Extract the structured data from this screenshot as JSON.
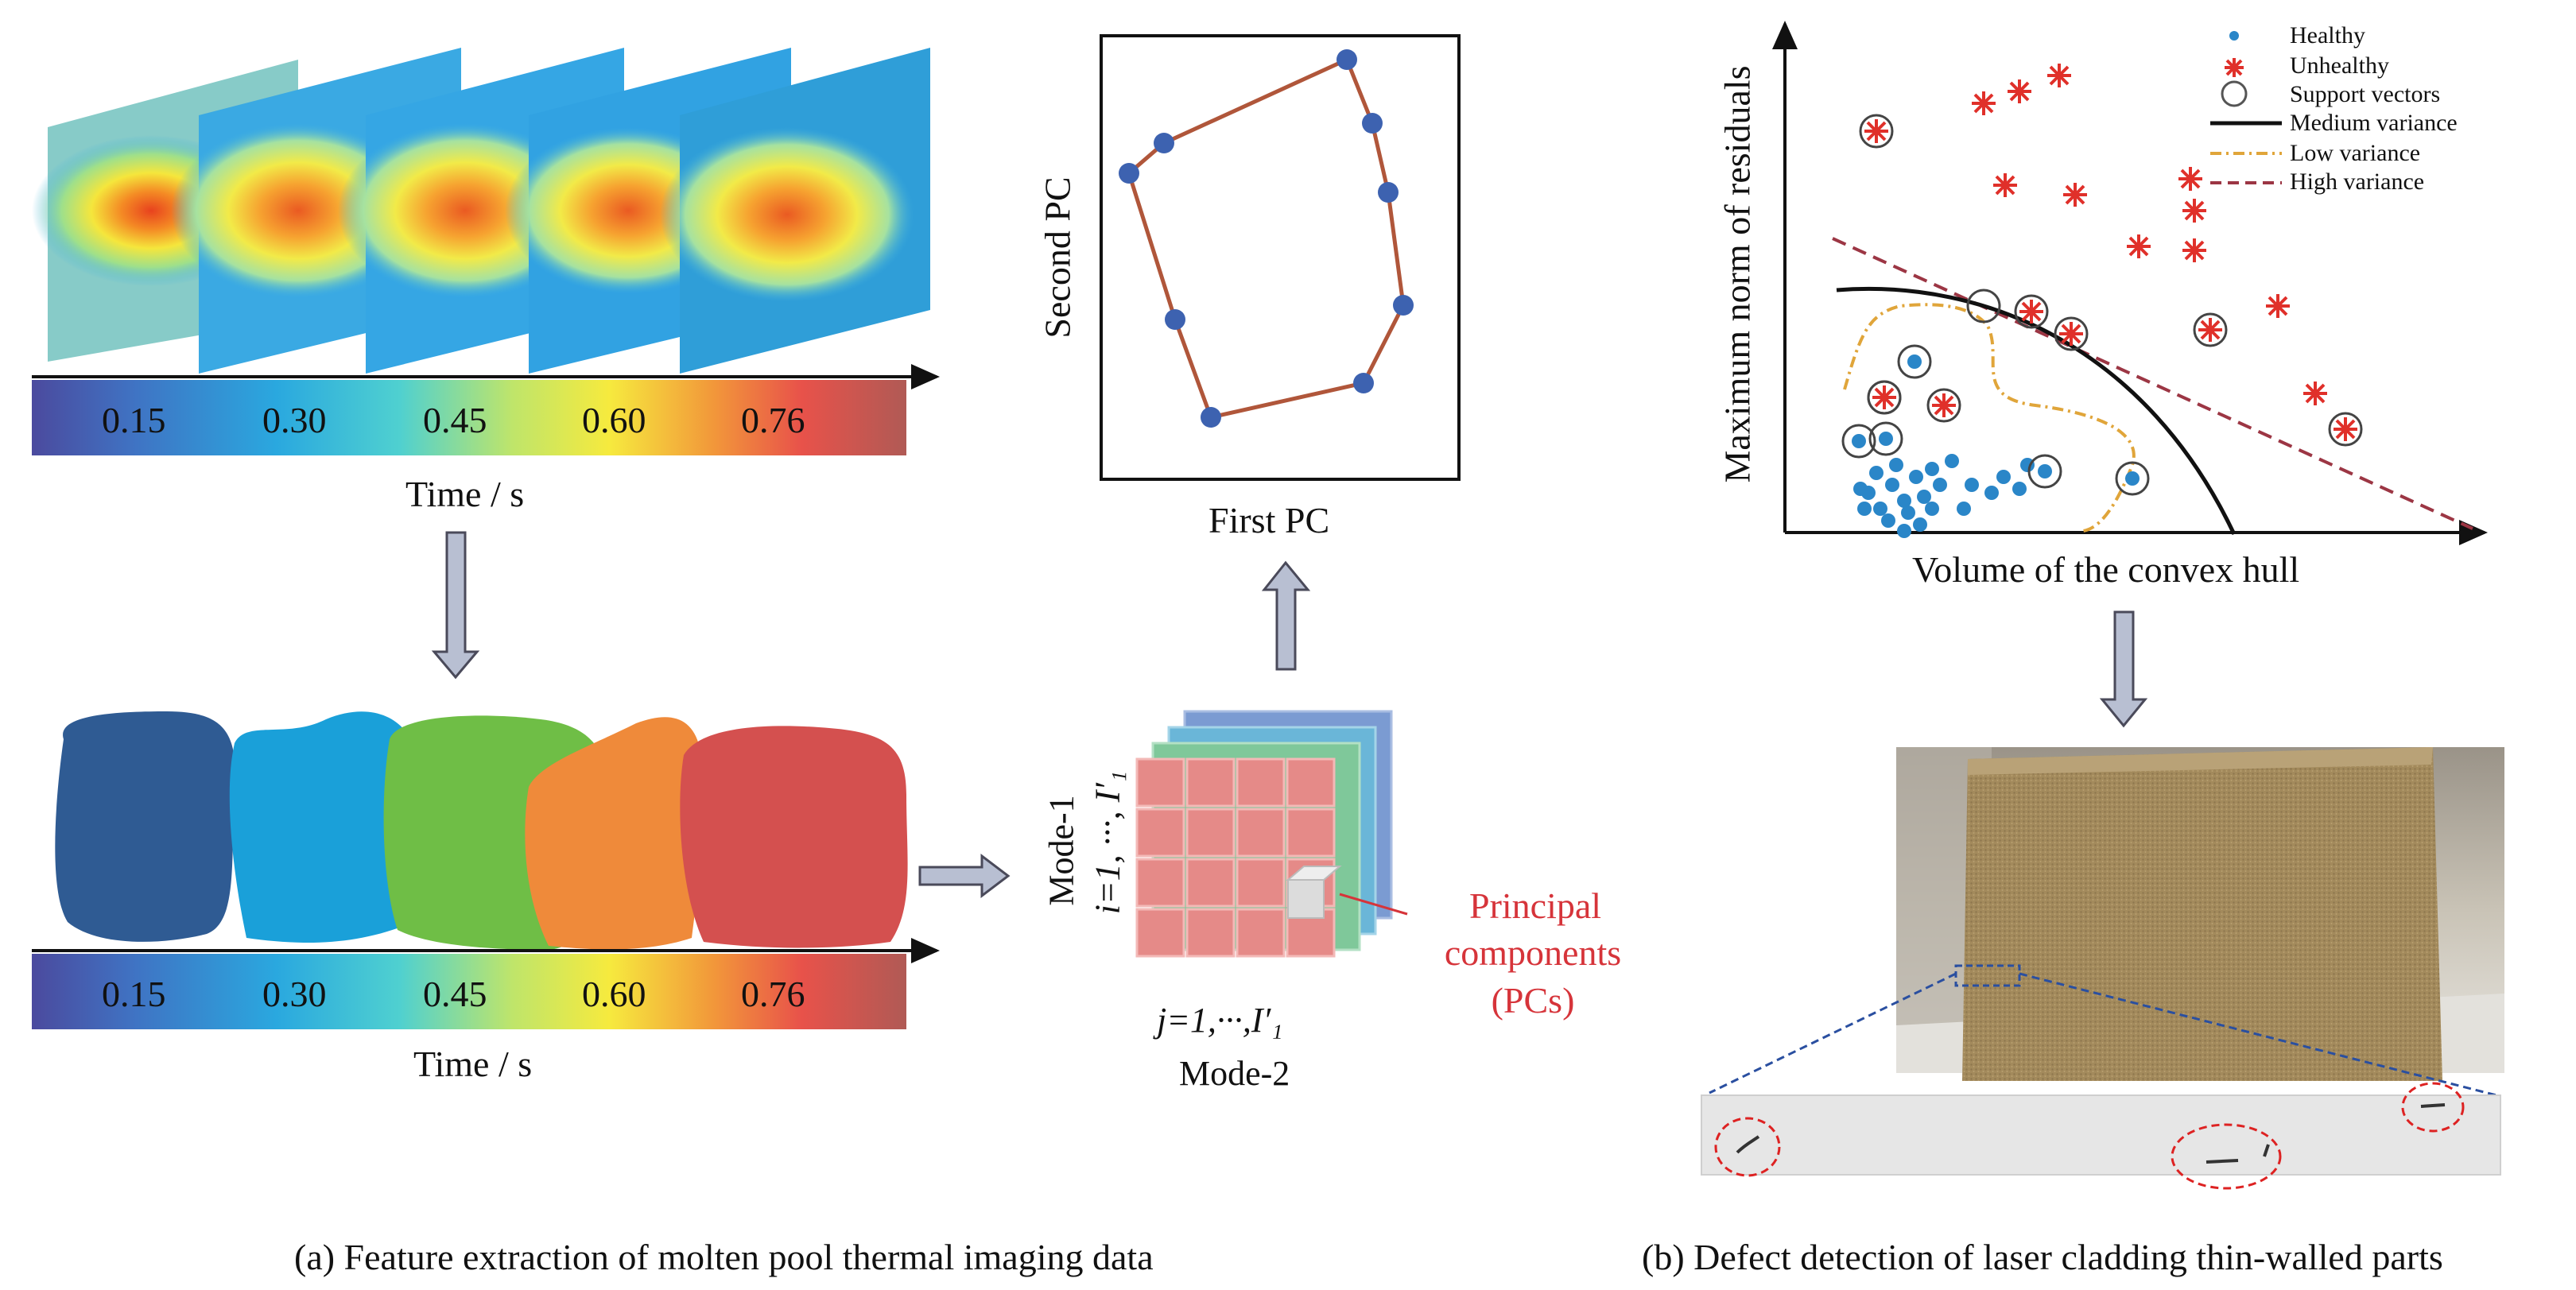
{
  "panel_a": {
    "colorbar_ticks": [
      "0.15",
      "0.30",
      "0.45",
      "0.60",
      "0.76"
    ],
    "time_axis_label": "Time / s",
    "pca_plot": {
      "xlabel": "First PC",
      "ylabel": "Second PC"
    },
    "tensor": {
      "mode1_label": "Mode-1",
      "mode1_index": "i=1, ···, I′₁",
      "mode2_index": "j=1,···,I′₁",
      "mode2_label": "Mode-2"
    },
    "principal_components_label": [
      "Principal",
      "components",
      "(PCs)"
    ],
    "caption": "(a)  Feature extraction of molten pool thermal imaging data"
  },
  "panel_b": {
    "svm_plot": {
      "xlabel": "Volume of the convex hull",
      "ylabel": "Maximum norm of residuals",
      "legend": [
        "Healthy",
        "Unhealthy",
        "Support vectors",
        "Medium variance",
        "Low variance",
        "High variance"
      ]
    },
    "caption": "(b)  Defect detection of laser cladding thin-walled parts"
  },
  "colors": {
    "arrow_fill": "#b8bfd2",
    "arrow_stroke": "#4a4a5a",
    "hull_line": "#b0563a",
    "hull_point": "#3d62b0",
    "healthy": "#2a86c8",
    "unhealthy": "#e0302a",
    "medium_variance": "#111111",
    "low_variance": "#e0a53a",
    "high_variance": "#9c3644",
    "pc_label": "#d6343a"
  }
}
